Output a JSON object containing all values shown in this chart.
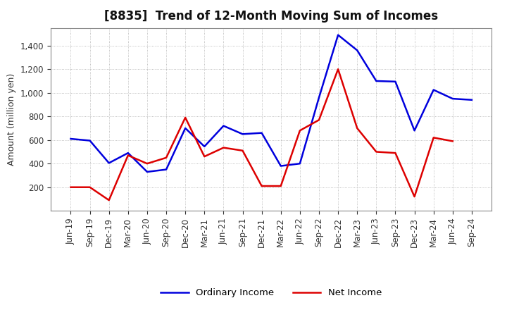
{
  "title": "[8835]  Trend of 12-Month Moving Sum of Incomes",
  "ylabel": "Amount (million yen)",
  "x_labels": [
    "Jun-19",
    "Sep-19",
    "Dec-19",
    "Mar-20",
    "Jun-20",
    "Sep-20",
    "Dec-20",
    "Mar-21",
    "Jun-21",
    "Sep-21",
    "Dec-21",
    "Mar-22",
    "Jun-22",
    "Sep-22",
    "Dec-22",
    "Mar-23",
    "Jun-23",
    "Sep-23",
    "Dec-23",
    "Mar-24",
    "Jun-24",
    "Sep-24"
  ],
  "ordinary_income": [
    610,
    595,
    405,
    490,
    330,
    350,
    700,
    545,
    720,
    650,
    660,
    380,
    400,
    960,
    1490,
    1360,
    1100,
    1095,
    680,
    1025,
    950,
    940
  ],
  "net_income": [
    200,
    200,
    90,
    470,
    400,
    450,
    790,
    460,
    535,
    510,
    210,
    210,
    680,
    770,
    1200,
    700,
    500,
    490,
    120,
    620,
    590,
    null
  ],
  "ordinary_color": "#0000dd",
  "net_color": "#dd0000",
  "bg_color": "#ffffff",
  "plot_bg_color": "#ffffff",
  "grid_color": "#999999",
  "ylim": [
    0,
    1550
  ],
  "yticks": [
    200,
    400,
    600,
    800,
    1000,
    1200,
    1400
  ],
  "legend_labels": [
    "Ordinary Income",
    "Net Income"
  ],
  "title_fontsize": 12,
  "axis_fontsize": 9,
  "tick_fontsize": 8.5
}
